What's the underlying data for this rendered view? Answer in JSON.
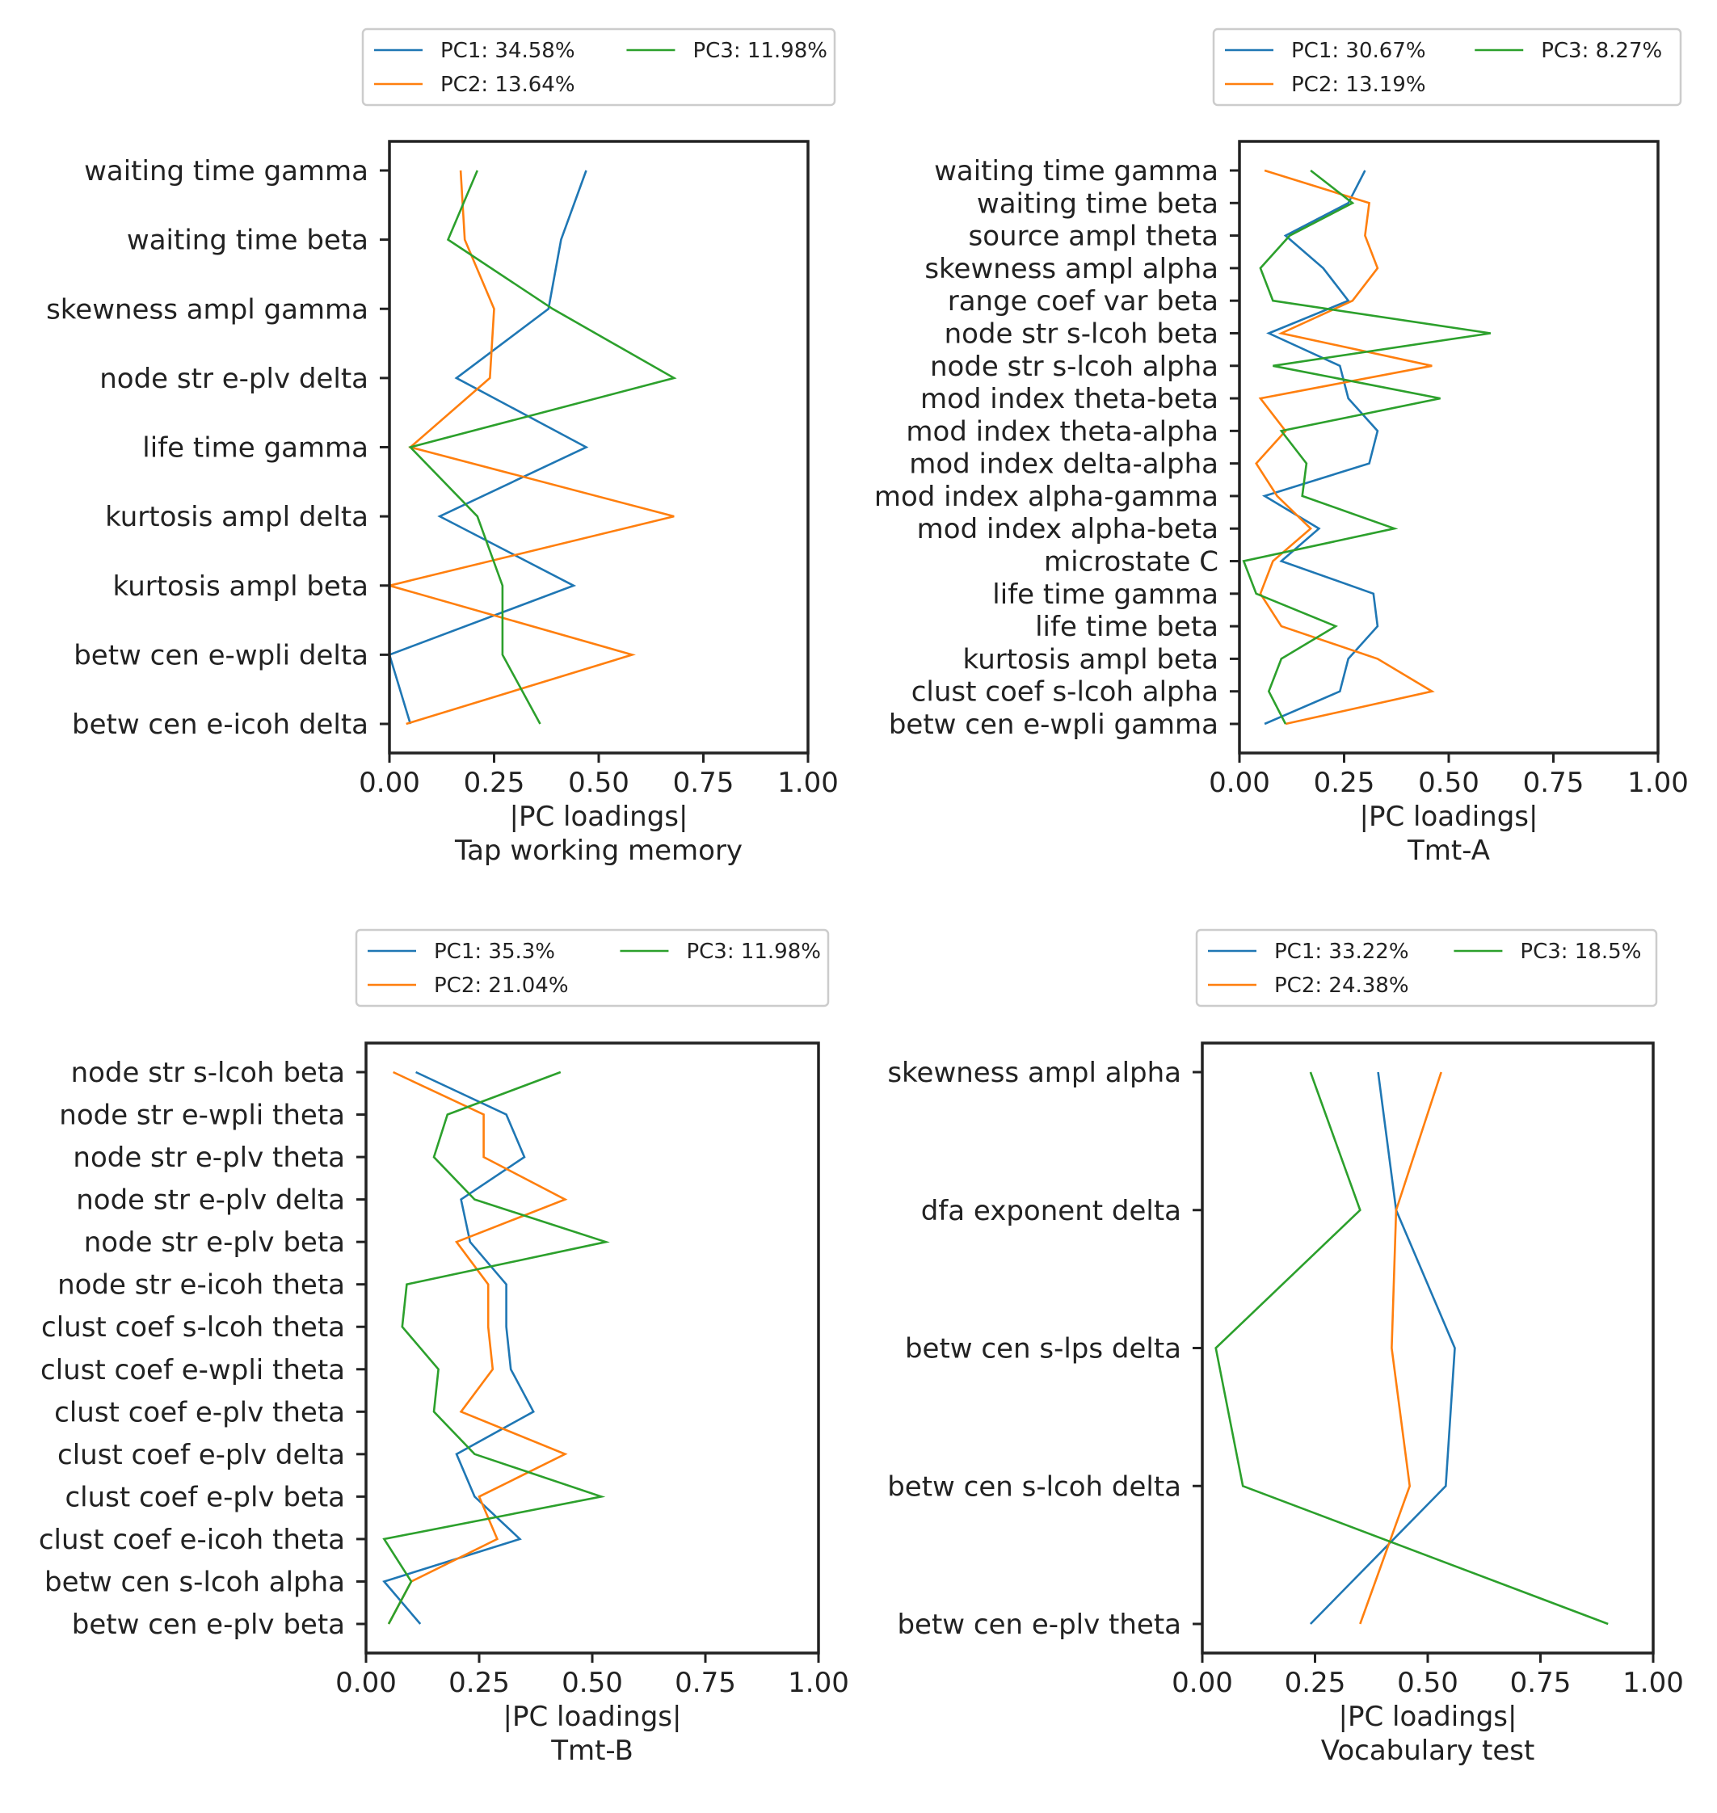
{
  "colors": {
    "PC1": "#1f77b4",
    "PC2": "#ff7f0e",
    "PC3": "#2ca02c",
    "axes": "#222222"
  },
  "chart_data": [
    {
      "type": "line",
      "xlabel": "|PC loadings|",
      "subtitle": "Tap working memory",
      "xlim": [
        0,
        1
      ],
      "xticks": [
        "0.00",
        "0.25",
        "0.50",
        "0.75",
        "1.00"
      ],
      "legend_position": "top",
      "categories": [
        "waiting time gamma",
        "waiting time beta",
        "skewness ampl gamma",
        "node str e-plv delta",
        "life time gamma",
        "kurtosis ampl delta",
        "kurtosis ampl beta",
        "betw cen e-wpli delta",
        "betw cen e-icoh delta"
      ],
      "series": [
        {
          "name": "PC1: 34.58%",
          "key": "PC1",
          "values": [
            0.47,
            0.41,
            0.38,
            0.16,
            0.47,
            0.12,
            0.44,
            0.0,
            0.05
          ]
        },
        {
          "name": "PC2: 13.64%",
          "key": "PC2",
          "values": [
            0.17,
            0.18,
            0.25,
            0.24,
            0.05,
            0.68,
            0.0,
            0.58,
            0.04
          ]
        },
        {
          "name": "PC3: 11.98%",
          "key": "PC3",
          "values": [
            0.21,
            0.14,
            0.39,
            0.68,
            0.05,
            0.21,
            0.27,
            0.27,
            0.36
          ]
        }
      ]
    },
    {
      "type": "line",
      "xlabel": "|PC loadings|",
      "subtitle": "Tmt-A",
      "xlim": [
        0,
        1
      ],
      "xticks": [
        "0.00",
        "0.25",
        "0.50",
        "0.75",
        "1.00"
      ],
      "legend_position": "top",
      "categories": [
        "waiting time gamma",
        "waiting time beta",
        "source ampl theta",
        "skewness ampl alpha",
        "range coef var beta",
        "node str s-lcoh beta",
        "node str s-lcoh alpha",
        "mod index theta-beta",
        "mod index theta-alpha",
        "mod index delta-alpha",
        "mod index alpha-gamma",
        "mod index alpha-beta",
        "microstate C",
        "life time gamma",
        "life time beta",
        "kurtosis ampl beta",
        "clust coef s-lcoh alpha",
        "betw cen e-wpli gamma"
      ],
      "series": [
        {
          "name": "PC1: 30.67%",
          "key": "PC1",
          "values": [
            0.3,
            0.26,
            0.11,
            0.2,
            0.26,
            0.07,
            0.24,
            0.26,
            0.33,
            0.31,
            0.06,
            0.19,
            0.1,
            0.32,
            0.33,
            0.26,
            0.24,
            0.06
          ]
        },
        {
          "name": "PC2: 13.19%",
          "key": "PC2",
          "values": [
            0.06,
            0.31,
            0.3,
            0.33,
            0.27,
            0.1,
            0.46,
            0.05,
            0.11,
            0.04,
            0.09,
            0.17,
            0.08,
            0.05,
            0.1,
            0.33,
            0.46,
            0.11
          ]
        },
        {
          "name": "PC3: 8.27%",
          "key": "PC3",
          "values": [
            0.17,
            0.27,
            0.12,
            0.05,
            0.08,
            0.6,
            0.08,
            0.48,
            0.1,
            0.16,
            0.15,
            0.37,
            0.01,
            0.04,
            0.23,
            0.1,
            0.07,
            0.11
          ]
        }
      ]
    },
    {
      "type": "line",
      "xlabel": "|PC loadings|",
      "subtitle": "Tmt-B",
      "xlim": [
        0,
        1
      ],
      "xticks": [
        "0.00",
        "0.25",
        "0.50",
        "0.75",
        "1.00"
      ],
      "legend_position": "top",
      "categories": [
        "node str s-lcoh beta",
        "node str e-wpli theta",
        "node str e-plv theta",
        "node str e-plv delta",
        "node str e-plv beta",
        "node str e-icoh theta",
        "clust coef s-lcoh theta",
        "clust coef e-wpli theta",
        "clust coef e-plv theta",
        "clust coef e-plv delta",
        "clust coef e-plv beta",
        "clust coef e-icoh theta",
        "betw cen s-lcoh alpha",
        "betw cen e-plv beta"
      ],
      "series": [
        {
          "name": "PC1: 35.3%",
          "key": "PC1",
          "values": [
            0.11,
            0.31,
            0.35,
            0.21,
            0.23,
            0.31,
            0.31,
            0.32,
            0.37,
            0.2,
            0.24,
            0.34,
            0.04,
            0.12
          ]
        },
        {
          "name": "PC2: 21.04%",
          "key": "PC2",
          "values": [
            0.06,
            0.26,
            0.26,
            0.44,
            0.2,
            0.27,
            0.27,
            0.28,
            0.21,
            0.44,
            0.25,
            0.29,
            0.1,
            0.05
          ]
        },
        {
          "name": "PC3: 11.98%",
          "key": "PC3",
          "values": [
            0.43,
            0.18,
            0.15,
            0.24,
            0.53,
            0.09,
            0.08,
            0.16,
            0.15,
            0.24,
            0.52,
            0.04,
            0.1,
            0.05
          ]
        }
      ]
    },
    {
      "type": "line",
      "xlabel": "|PC loadings|",
      "subtitle": "Vocabulary test",
      "xlim": [
        0,
        1
      ],
      "xticks": [
        "0.00",
        "0.25",
        "0.50",
        "0.75",
        "1.00"
      ],
      "legend_position": "top",
      "categories": [
        "skewness ampl alpha",
        "dfa exponent delta",
        "betw cen s-lps delta",
        "betw cen s-lcoh delta",
        "betw cen e-plv theta"
      ],
      "series": [
        {
          "name": "PC1: 33.22%",
          "key": "PC1",
          "values": [
            0.39,
            0.43,
            0.56,
            0.54,
            0.24
          ]
        },
        {
          "name": "PC2: 24.38%",
          "key": "PC2",
          "values": [
            0.53,
            0.43,
            0.42,
            0.46,
            0.35
          ]
        },
        {
          "name": "PC3: 18.5%",
          "key": "PC3",
          "values": [
            0.24,
            0.35,
            0.03,
            0.09,
            0.9
          ]
        }
      ]
    }
  ]
}
